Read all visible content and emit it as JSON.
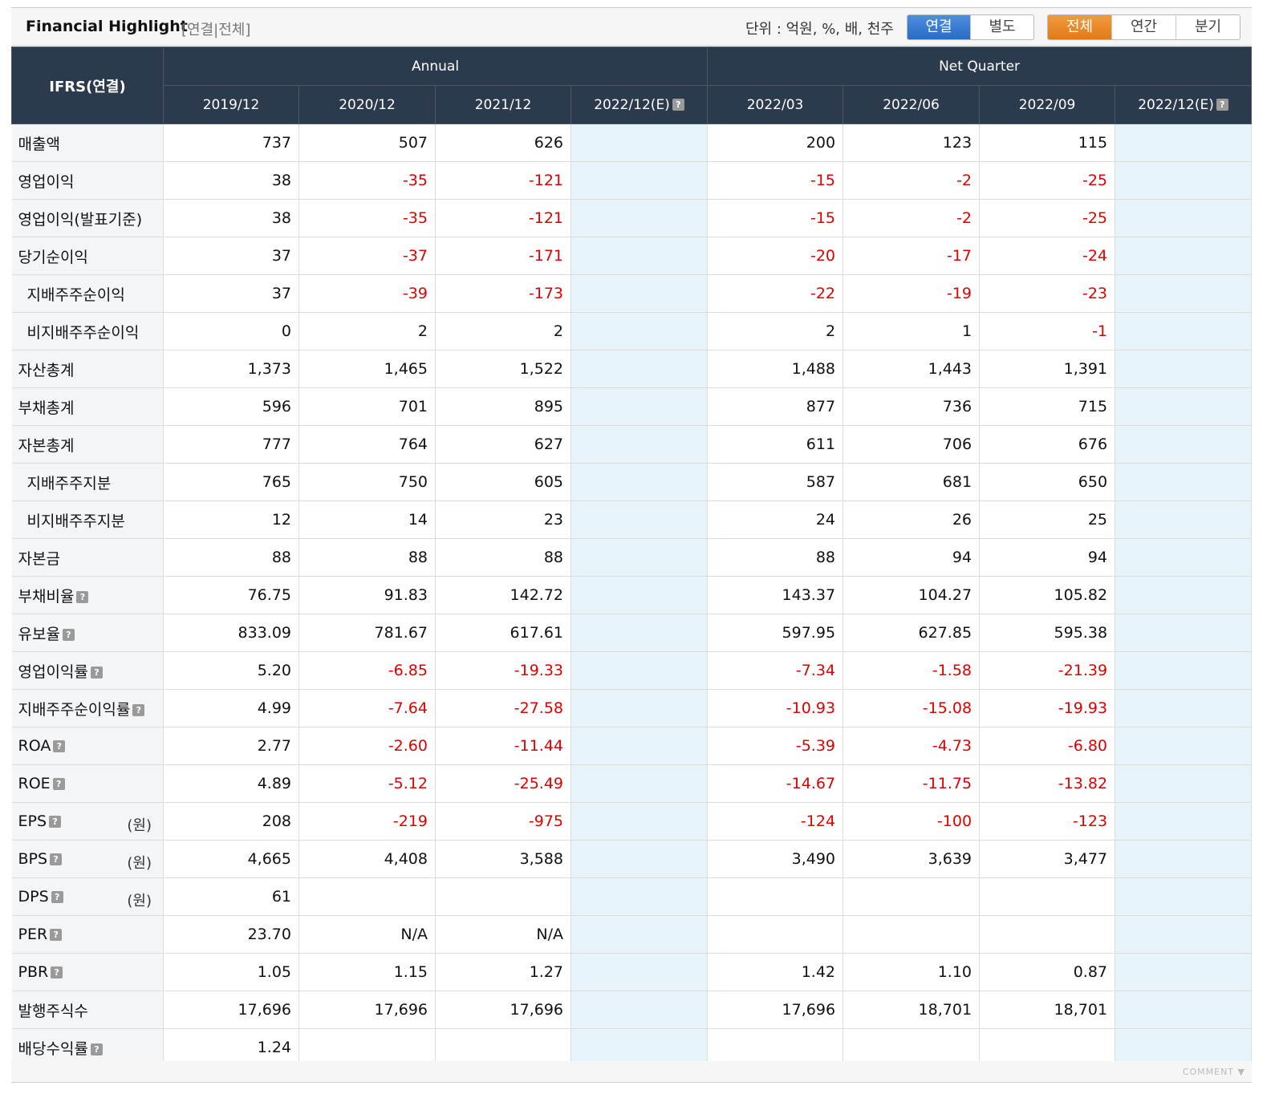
{
  "header": {
    "title": "Financial Highlight",
    "subtitle": "[연결|전체]",
    "unit_text": "단위 : 억원, %, 배, 천주",
    "scope_buttons": [
      "연결",
      "별도"
    ],
    "period_buttons": [
      "전체",
      "연간",
      "분기"
    ]
  },
  "table": {
    "corner_label": "IFRS(연결)",
    "group_annual": "Annual",
    "group_quarter": "Net Quarter",
    "columns": [
      "2019/12",
      "2020/12",
      "2021/12",
      "2022/12(E)",
      "2022/03",
      "2022/06",
      "2022/09",
      "2022/12(E)"
    ],
    "unit_won": "(원)",
    "help_glyph": "?",
    "rows": [
      {
        "label": "매출액",
        "values": [
          "737",
          "507",
          "626",
          "",
          "200",
          "123",
          "115",
          ""
        ]
      },
      {
        "label": "영업이익",
        "values": [
          "38",
          "-35",
          "-121",
          "",
          "-15",
          "-2",
          "-25",
          ""
        ]
      },
      {
        "label": "영업이익(발표기준)",
        "values": [
          "38",
          "-35",
          "-121",
          "",
          "-15",
          "-2",
          "-25",
          ""
        ]
      },
      {
        "label": "당기순이익",
        "values": [
          "37",
          "-37",
          "-171",
          "",
          "-20",
          "-17",
          "-24",
          ""
        ]
      },
      {
        "label": "지배주주순이익",
        "values": [
          "37",
          "-39",
          "-173",
          "",
          "-22",
          "-19",
          "-23",
          ""
        ]
      },
      {
        "label": "비지배주주순이익",
        "values": [
          "0",
          "2",
          "2",
          "",
          "2",
          "1",
          "-1",
          ""
        ]
      },
      {
        "label": "자산총계",
        "values": [
          "1,373",
          "1,465",
          "1,522",
          "",
          "1,488",
          "1,443",
          "1,391",
          ""
        ]
      },
      {
        "label": "부채총계",
        "values": [
          "596",
          "701",
          "895",
          "",
          "877",
          "736",
          "715",
          ""
        ]
      },
      {
        "label": "자본총계",
        "values": [
          "777",
          "764",
          "627",
          "",
          "611",
          "706",
          "676",
          ""
        ]
      },
      {
        "label": "지배주주지분",
        "values": [
          "765",
          "750",
          "605",
          "",
          "587",
          "681",
          "650",
          ""
        ]
      },
      {
        "label": "비지배주주지분",
        "values": [
          "12",
          "14",
          "23",
          "",
          "24",
          "26",
          "25",
          ""
        ]
      },
      {
        "label": "자본금",
        "values": [
          "88",
          "88",
          "88",
          "",
          "88",
          "94",
          "94",
          ""
        ]
      },
      {
        "label": "부채비율",
        "values": [
          "76.75",
          "91.83",
          "142.72",
          "",
          "143.37",
          "104.27",
          "105.82",
          ""
        ]
      },
      {
        "label": "유보율",
        "values": [
          "833.09",
          "781.67",
          "617.61",
          "",
          "597.95",
          "627.85",
          "595.38",
          ""
        ]
      },
      {
        "label": "영업이익률",
        "values": [
          "5.20",
          "-6.85",
          "-19.33",
          "",
          "-7.34",
          "-1.58",
          "-21.39",
          ""
        ]
      },
      {
        "label": "지배주주순이익률",
        "values": [
          "4.99",
          "-7.64",
          "-27.58",
          "",
          "-10.93",
          "-15.08",
          "-19.93",
          ""
        ]
      },
      {
        "label": "ROA",
        "values": [
          "2.77",
          "-2.60",
          "-11.44",
          "",
          "-5.39",
          "-4.73",
          "-6.80",
          ""
        ]
      },
      {
        "label": "ROE",
        "values": [
          "4.89",
          "-5.12",
          "-25.49",
          "",
          "-14.67",
          "-11.75",
          "-13.82",
          ""
        ]
      },
      {
        "label": "EPS",
        "values": [
          "208",
          "-219",
          "-975",
          "",
          "-124",
          "-100",
          "-123",
          ""
        ]
      },
      {
        "label": "BPS",
        "values": [
          "4,665",
          "4,408",
          "3,588",
          "",
          "3,490",
          "3,639",
          "3,477",
          ""
        ]
      },
      {
        "label": "DPS",
        "values": [
          "61",
          "",
          "",
          "",
          "",
          "",
          "",
          ""
        ]
      },
      {
        "label": "PER",
        "values": [
          "23.70",
          "N/A",
          "N/A",
          "",
          "",
          "",
          "",
          ""
        ]
      },
      {
        "label": "PBR",
        "values": [
          "1.05",
          "1.15",
          "1.27",
          "",
          "1.42",
          "1.10",
          "0.87",
          ""
        ]
      },
      {
        "label": "발행주식수",
        "values": [
          "17,696",
          "17,696",
          "17,696",
          "",
          "17,696",
          "18,701",
          "18,701",
          ""
        ]
      },
      {
        "label": "배당수익률",
        "values": [
          "1.24",
          "",
          "",
          "",
          "",
          "",
          "",
          ""
        ]
      }
    ]
  },
  "footer": {
    "comment": "COMMENT ▼"
  },
  "colors": {
    "header_bg": "#2b3b4d",
    "negative": "#e00000",
    "estimate_bg": "#e6f3f8",
    "blue_btn": "#2a6bc4",
    "orange_btn": "#e07a18"
  }
}
